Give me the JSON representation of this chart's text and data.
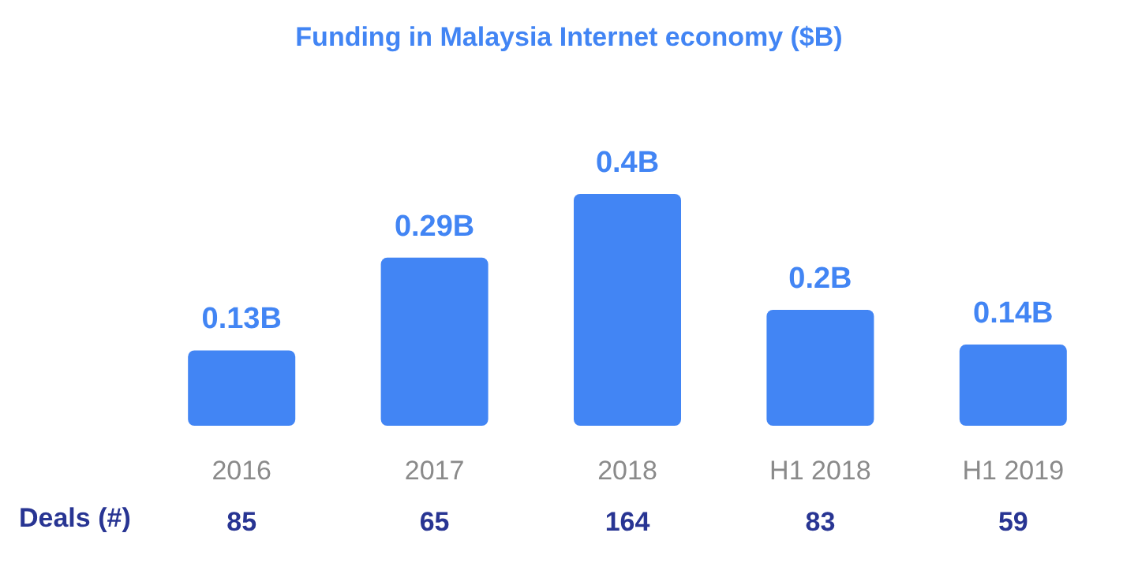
{
  "chart_data": {
    "type": "bar",
    "title": "Funding in Malaysia Internet economy ($B)",
    "categories": [
      "2016",
      "2017",
      "2018",
      "H1 2018",
      "H1 2019"
    ],
    "values": [
      0.13,
      0.29,
      0.4,
      0.2,
      0.14
    ],
    "value_labels": [
      "0.13B",
      "0.29B",
      "0.4B",
      "0.2B",
      "0.14B"
    ],
    "color": "#4285f4",
    "grid": false,
    "annotations": [
      "Deals (#)",
      "85",
      "65",
      "164",
      "83",
      "59"
    ]
  }
}
